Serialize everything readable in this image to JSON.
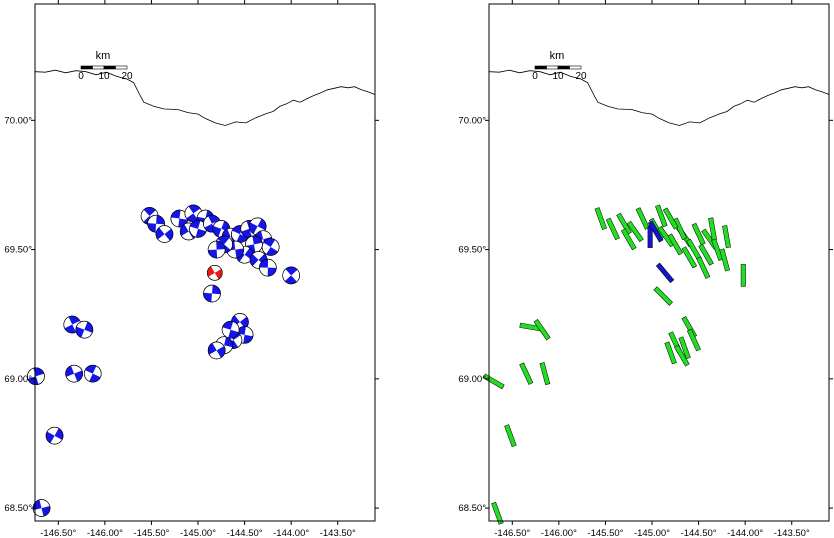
{
  "maps": [
    {
      "name": "left",
      "lon_range": [
        -146.75,
        -143.1
      ],
      "lat_range": [
        68.45,
        70.45
      ],
      "x_ticks": [
        "-146.50°",
        "-146.00°",
        "-145.50°",
        "-145.00°",
        "-144.50°",
        "-144.00°",
        "-143.50°"
      ],
      "x_tick_values": [
        -146.5,
        -146.0,
        -145.5,
        -145.0,
        -144.5,
        -144.0,
        -143.5
      ],
      "y_ticks": [
        "68.50°",
        "69.00°",
        "69.50°",
        "70.00°"
      ],
      "y_tick_values": [
        68.5,
        69.0,
        69.5,
        70.0
      ],
      "scalebar": {
        "unit": "km",
        "labels": [
          "0",
          "10",
          "20"
        ]
      },
      "symbol": "beachball",
      "colors": {
        "event": "#1515e6",
        "highlight": "#ee1515"
      },
      "events": [
        {
          "lon": -145.52,
          "lat": 69.63
        },
        {
          "lon": -145.45,
          "lat": 69.6
        },
        {
          "lon": -145.36,
          "lat": 69.56
        },
        {
          "lon": -145.2,
          "lat": 69.62
        },
        {
          "lon": -145.05,
          "lat": 69.64
        },
        {
          "lon": -144.92,
          "lat": 69.62
        },
        {
          "lon": -145.1,
          "lat": 69.57
        },
        {
          "lon": -145.0,
          "lat": 69.58
        },
        {
          "lon": -144.85,
          "lat": 69.6
        },
        {
          "lon": -144.75,
          "lat": 69.58
        },
        {
          "lon": -144.65,
          "lat": 69.55
        },
        {
          "lon": -144.55,
          "lat": 69.56
        },
        {
          "lon": -144.45,
          "lat": 69.58
        },
        {
          "lon": -144.36,
          "lat": 69.59
        },
        {
          "lon": -144.3,
          "lat": 69.54
        },
        {
          "lon": -144.22,
          "lat": 69.51
        },
        {
          "lon": -144.4,
          "lat": 69.52
        },
        {
          "lon": -144.5,
          "lat": 69.48
        },
        {
          "lon": -144.6,
          "lat": 69.5
        },
        {
          "lon": -144.72,
          "lat": 69.52
        },
        {
          "lon": -144.8,
          "lat": 69.5
        },
        {
          "lon": -144.35,
          "lat": 69.46
        },
        {
          "lon": -144.25,
          "lat": 69.43
        },
        {
          "lon": -144.0,
          "lat": 69.4
        },
        {
          "lon": -144.85,
          "lat": 69.33
        },
        {
          "lon": -144.55,
          "lat": 69.22
        },
        {
          "lon": -144.5,
          "lat": 69.17
        },
        {
          "lon": -144.62,
          "lat": 69.15
        },
        {
          "lon": -144.72,
          "lat": 69.13
        },
        {
          "lon": -144.8,
          "lat": 69.11
        },
        {
          "lon": -144.65,
          "lat": 69.19
        },
        {
          "lon": -146.35,
          "lat": 69.21
        },
        {
          "lon": -146.22,
          "lat": 69.19
        },
        {
          "lon": -146.33,
          "lat": 69.02
        },
        {
          "lon": -146.13,
          "lat": 69.02
        },
        {
          "lon": -146.74,
          "lat": 69.01
        },
        {
          "lon": -146.54,
          "lat": 68.78
        },
        {
          "lon": -146.68,
          "lat": 68.5
        }
      ],
      "highlight_events": [
        {
          "lon": -144.82,
          "lat": 69.41
        }
      ]
    },
    {
      "name": "right",
      "lon_range": [
        -146.75,
        -143.1
      ],
      "lat_range": [
        68.45,
        70.45
      ],
      "x_ticks": [
        "-146.50°",
        "-146.00°",
        "-145.50°",
        "-145.00°",
        "-144.50°",
        "-144.00°",
        "-143.50°"
      ],
      "x_tick_values": [
        -146.5,
        -146.0,
        -145.5,
        -145.0,
        -144.5,
        -144.0,
        -143.5
      ],
      "y_ticks": [
        "68.50°",
        "69.00°",
        "69.50°",
        "70.00°"
      ],
      "y_tick_values": [
        68.5,
        69.0,
        69.5,
        70.0
      ],
      "scalebar": {
        "unit": "km",
        "labels": [
          "0",
          "10",
          "20"
        ]
      },
      "symbol": "bar",
      "colors": {
        "bar": "#22dd22",
        "bar_highlight": "#1515cc"
      },
      "bars": [
        {
          "lon": -145.55,
          "lat": 69.62,
          "az": 20
        },
        {
          "lon": -145.42,
          "lat": 69.58,
          "az": 25
        },
        {
          "lon": -145.3,
          "lat": 69.6,
          "az": 30
        },
        {
          "lon": -145.18,
          "lat": 69.57,
          "az": 35
        },
        {
          "lon": -145.1,
          "lat": 69.62,
          "az": 25
        },
        {
          "lon": -145.25,
          "lat": 69.54,
          "az": 30
        },
        {
          "lon": -144.95,
          "lat": 69.58,
          "az": 30
        },
        {
          "lon": -144.85,
          "lat": 69.55,
          "az": 35
        },
        {
          "lon": -144.75,
          "lat": 69.52,
          "az": 30
        },
        {
          "lon": -144.65,
          "lat": 69.55,
          "az": 35
        },
        {
          "lon": -144.55,
          "lat": 69.5,
          "az": 30
        },
        {
          "lon": -144.5,
          "lat": 69.56,
          "az": 25
        },
        {
          "lon": -144.42,
          "lat": 69.48,
          "az": 30
        },
        {
          "lon": -144.38,
          "lat": 69.54,
          "az": 35
        },
        {
          "lon": -144.3,
          "lat": 69.5,
          "az": 20
        },
        {
          "lon": -144.22,
          "lat": 69.46,
          "az": 15
        },
        {
          "lon": -144.2,
          "lat": 69.55,
          "az": 10
        },
        {
          "lon": -144.45,
          "lat": 69.43,
          "az": 25
        },
        {
          "lon": -144.6,
          "lat": 69.47,
          "az": 30
        },
        {
          "lon": -144.7,
          "lat": 69.58,
          "az": 25
        },
        {
          "lon": -144.8,
          "lat": 69.62,
          "az": 30
        },
        {
          "lon": -144.9,
          "lat": 69.63,
          "az": 20
        },
        {
          "lon": -144.35,
          "lat": 69.58,
          "az": 10
        },
        {
          "lon": -144.02,
          "lat": 69.4,
          "az": 0
        },
        {
          "lon": -144.88,
          "lat": 69.32,
          "az": 45
        },
        {
          "lon": -144.6,
          "lat": 69.2,
          "az": 30
        },
        {
          "lon": -144.55,
          "lat": 69.15,
          "az": 25
        },
        {
          "lon": -144.65,
          "lat": 69.12,
          "az": 20
        },
        {
          "lon": -144.75,
          "lat": 69.14,
          "az": 25
        },
        {
          "lon": -144.8,
          "lat": 69.1,
          "az": 20
        },
        {
          "lon": -144.68,
          "lat": 69.09,
          "az": 30
        },
        {
          "lon": -146.3,
          "lat": 69.2,
          "az": 80
        },
        {
          "lon": -146.18,
          "lat": 69.19,
          "az": 35
        },
        {
          "lon": -146.35,
          "lat": 69.02,
          "az": 25
        },
        {
          "lon": -146.15,
          "lat": 69.02,
          "az": 15
        },
        {
          "lon": -146.7,
          "lat": 68.99,
          "az": 60
        },
        {
          "lon": -146.52,
          "lat": 68.78,
          "az": 20
        },
        {
          "lon": -146.66,
          "lat": 68.48,
          "az": 20
        }
      ],
      "highlight_bars": [
        {
          "lon": -145.02,
          "lat": 69.55,
          "az": 0
        },
        {
          "lon": -144.96,
          "lat": 69.57,
          "az": 30
        },
        {
          "lon": -144.86,
          "lat": 69.41,
          "az": 40
        }
      ]
    }
  ]
}
